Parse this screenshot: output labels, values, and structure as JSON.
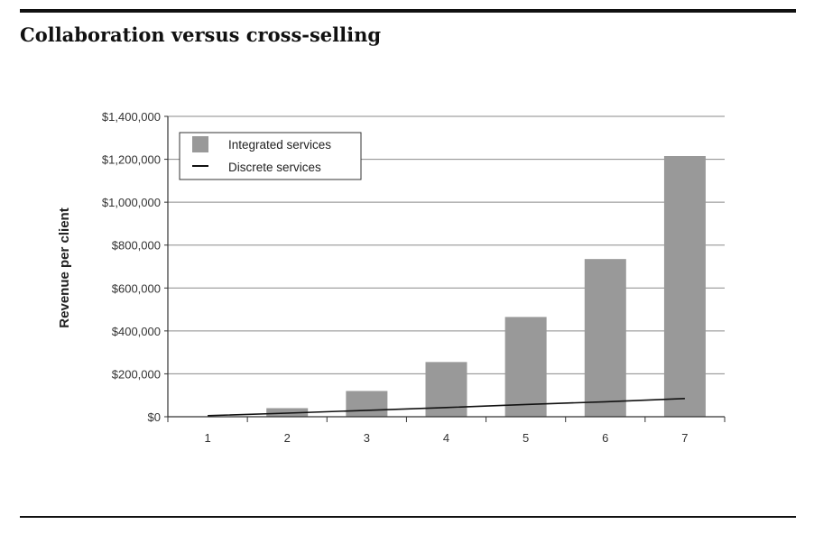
{
  "figure": {
    "title": "Collaboration versus cross-selling"
  },
  "chart_data": {
    "type": "bar",
    "categories": [
      "1",
      "2",
      "3",
      "4",
      "5",
      "6",
      "7"
    ],
    "series": [
      {
        "name": "Integrated services",
        "type": "bar",
        "color": "#999999",
        "values": [
          2000,
          40000,
          120000,
          255000,
          465000,
          735000,
          1215000
        ]
      },
      {
        "name": "Discrete services",
        "type": "line",
        "color": "#111111",
        "values": [
          5000,
          17000,
          30000,
          43000,
          57000,
          70000,
          85000
        ]
      }
    ],
    "ylabel": "Revenue per client",
    "xlabel": "",
    "ylim": [
      0,
      1400000
    ],
    "yticks": [
      0,
      200000,
      400000,
      600000,
      800000,
      1000000,
      1200000,
      1400000
    ],
    "ytick_labels": [
      "$0",
      "$200,000",
      "$400,000",
      "$600,000",
      "$800,000",
      "$1,000,000",
      "$1,200,000",
      "$1,400,000"
    ],
    "grid": true,
    "legend_position": "top-left"
  }
}
